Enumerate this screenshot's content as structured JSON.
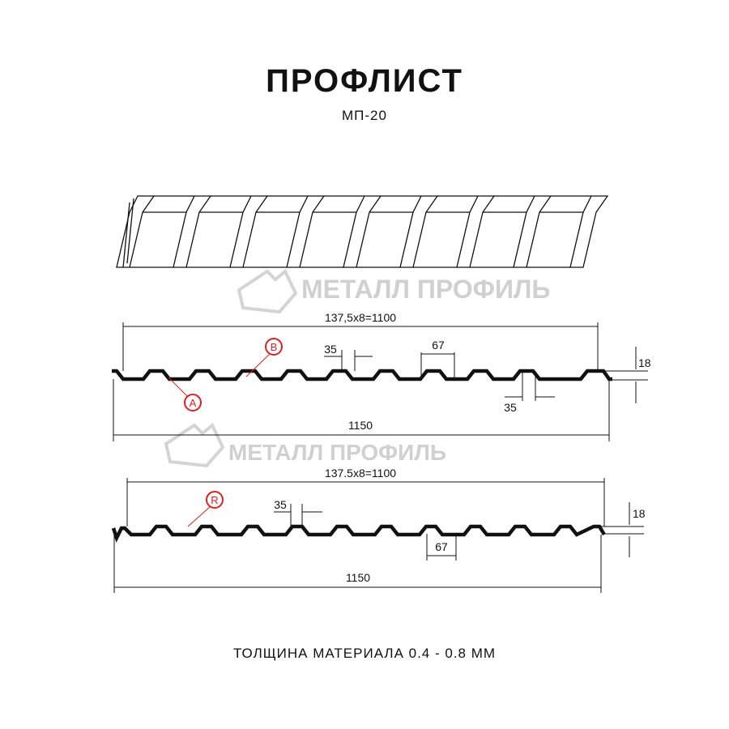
{
  "header": {
    "title": "ПРОФЛИСТ",
    "model": "МП-20"
  },
  "watermark": {
    "text": "МЕТАЛЛ ПРОФИЛЬ",
    "color": "#c8c8c8"
  },
  "profile_top": {
    "pitch_label": "137,5x8=1100",
    "total_label": "1150",
    "height_label": "18",
    "top_width_label": "35",
    "bottom_width_label": "35",
    "flat_label": "67",
    "callout_a": "A",
    "callout_b": "B"
  },
  "profile_bottom": {
    "pitch_label": "137.5x8=1100",
    "total_label": "1150",
    "height_label": "18",
    "top_width_label": "35",
    "flat_label": "67",
    "callout_r": "R"
  },
  "footer": {
    "thickness": "ТОЛЩИНА МАТЕРИАЛА 0.4 - 0.8 ММ"
  },
  "colors": {
    "callout": "#e02020",
    "line": "#111111"
  }
}
